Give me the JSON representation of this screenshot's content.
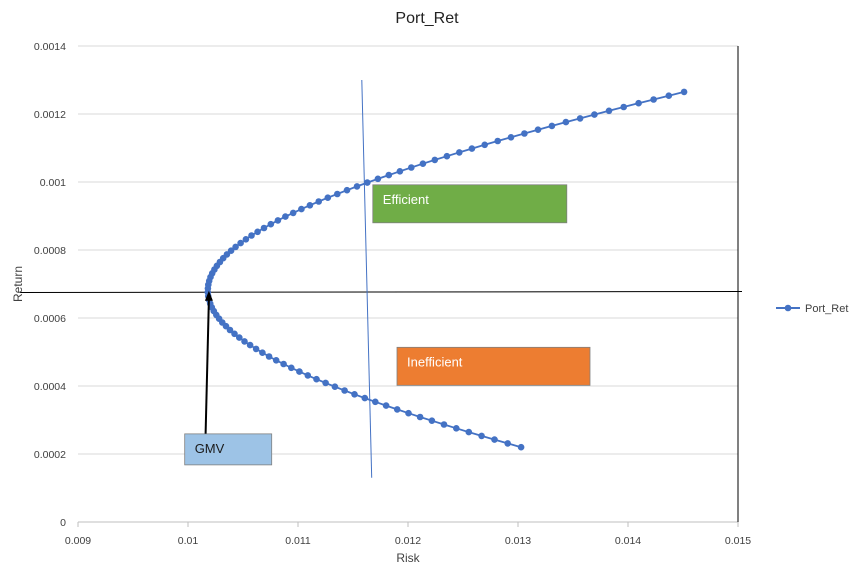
{
  "chart_data": {
    "type": "scatter",
    "title": "Port_Ret",
    "xlabel": "Risk",
    "ylabel": "Return",
    "xlim": [
      0.009,
      0.015
    ],
    "ylim": [
      0,
      0.0014
    ],
    "x_ticks": [
      "0.009",
      "0.01",
      "0.011",
      "0.012",
      "0.013",
      "0.014",
      "0.015"
    ],
    "y_ticks": [
      "0",
      "0.0002",
      "0.0004",
      "0.0006",
      "0.0008",
      "0.001",
      "0.0012",
      "0.0014"
    ],
    "grid": "horizontal",
    "legend": {
      "position": "right",
      "entries": [
        "Port_Ret"
      ]
    },
    "series": [
      {
        "name": "Port_Ret",
        "color": "#4472C4",
        "marker": "circle",
        "line": true,
        "frontier": {
          "gmv_risk": 0.01018,
          "gmv_return": 0.00068,
          "return_min": 0.00022,
          "return_max": 0.001265,
          "max_risk": 0.01451,
          "points": 95
        }
      }
    ],
    "annotations": [
      {
        "text": "Efficient",
        "anchor_x": 0.01168,
        "anchor_y": 0.00088,
        "fill": "#70AD47",
        "text_color": "#ffffff"
      },
      {
        "text": "Inefficient",
        "anchor_x": 0.0119,
        "anchor_y": 0.000402,
        "fill": "#ED7D31",
        "text_color": "#ffffff"
      },
      {
        "text": "GMV",
        "anchor_x": 0.00997,
        "anchor_y": 0.000168,
        "fill": "#9DC3E6",
        "text_color": "#1a1a1a"
      }
    ],
    "reference_lines": [
      {
        "kind": "horizontal",
        "y": 0.000675,
        "color": "#000000"
      },
      {
        "kind": "diagonal",
        "x1": 0.01158,
        "y1": 0.0013,
        "x2": 0.01167,
        "y2": 0.00013,
        "color": "#4472C4"
      }
    ],
    "arrow": {
      "from": [
        0.01016,
        0.00026
      ],
      "to": [
        0.01019,
        0.00068
      ]
    }
  }
}
